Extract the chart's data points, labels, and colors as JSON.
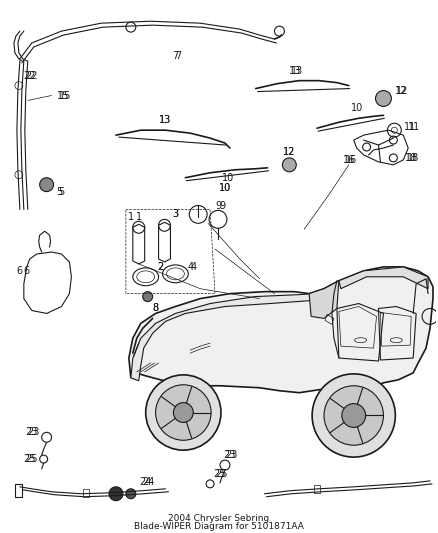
{
  "title": "2004 Chrysler Sebring\nBlade-WIPER Diagram for 5101871AA",
  "title_fontsize": 7,
  "background_color": "#ffffff",
  "line_color": "#1a1a1a",
  "fig_width": 4.38,
  "fig_height": 5.33,
  "dpi": 100
}
